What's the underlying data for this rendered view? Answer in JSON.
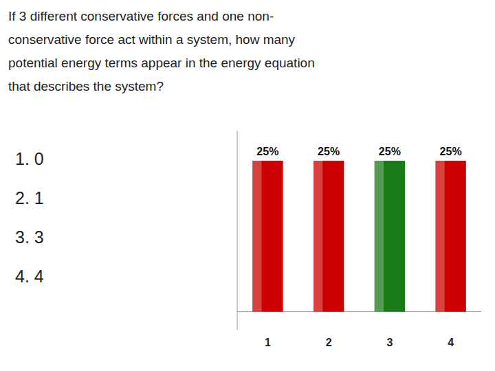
{
  "chart_data": {
    "type": "bar",
    "title": [
      "If 3 different conservative forces and one non-",
      "conservative force act within a system, how many",
      "potential energy terms appear in the energy equation",
      "that describes the system?"
    ],
    "annotations": [
      "1.  0",
      "2.  1",
      "3.  3",
      "4.  4"
    ],
    "categories": [
      "1",
      "2",
      "3",
      "4"
    ],
    "values": [
      25,
      25,
      25,
      25
    ],
    "value_labels": [
      "25%",
      "25%",
      "25%",
      "25%"
    ],
    "colors": [
      "#cc0000",
      "#cc0000",
      "#1a7a1a",
      "#cc0000"
    ],
    "ylim": [
      -3,
      30
    ],
    "data_labels": true,
    "tick_labels": "x",
    "grid": false
  }
}
